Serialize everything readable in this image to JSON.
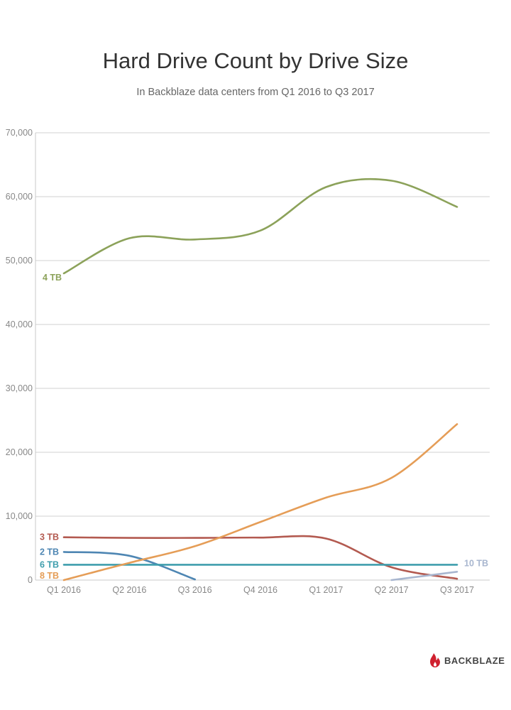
{
  "page": {
    "brand": "BACKBLAZE"
  },
  "chart_data": {
    "type": "line",
    "title": "Hard Drive Count by Drive Size",
    "subtitle": "In Backblaze data centers from Q1 2016 to Q3 2017",
    "categories": [
      "Q1 2016",
      "Q2 2016",
      "Q3 2016",
      "Q4 2016",
      "Q1 2017",
      "Q2 2017",
      "Q3 2017"
    ],
    "ylim": [
      0,
      70000
    ],
    "yticks": [
      0,
      10000,
      20000,
      30000,
      40000,
      50000,
      60000,
      70000
    ],
    "ytick_labels": [
      "0",
      "10,000",
      "20,000",
      "30,000",
      "40,000",
      "50,000",
      "60,000",
      "70,000"
    ],
    "grid": true,
    "xlabel": "",
    "ylabel": "",
    "series": [
      {
        "name": "4 TB",
        "label": "4 TB",
        "color": "#8ca25a",
        "values": [
          48000,
          53500,
          53300,
          54700,
          61500,
          62500,
          58400
        ]
      },
      {
        "name": "3 TB",
        "label": "3 TB",
        "color": "#b35a50",
        "values": [
          6700,
          6600,
          6600,
          6650,
          6500,
          2000,
          200
        ]
      },
      {
        "name": "2 TB",
        "label": "2 TB",
        "color": "#4e86b3",
        "values": [
          4400,
          3800,
          100,
          null,
          null,
          null,
          null
        ]
      },
      {
        "name": "6 TB",
        "label": "6 TB",
        "color": "#3f9ead",
        "values": [
          2400,
          2400,
          2400,
          2400,
          2400,
          2400,
          2400
        ]
      },
      {
        "name": "8 TB",
        "label": "8 TB",
        "color": "#e59d57",
        "values": [
          0,
          2700,
          5300,
          9100,
          12900,
          16000,
          24400
        ]
      },
      {
        "name": "10 TB",
        "label": "10 TB",
        "color": "#a8b6cf",
        "values": [
          null,
          null,
          null,
          null,
          null,
          0,
          1300
        ]
      }
    ]
  }
}
